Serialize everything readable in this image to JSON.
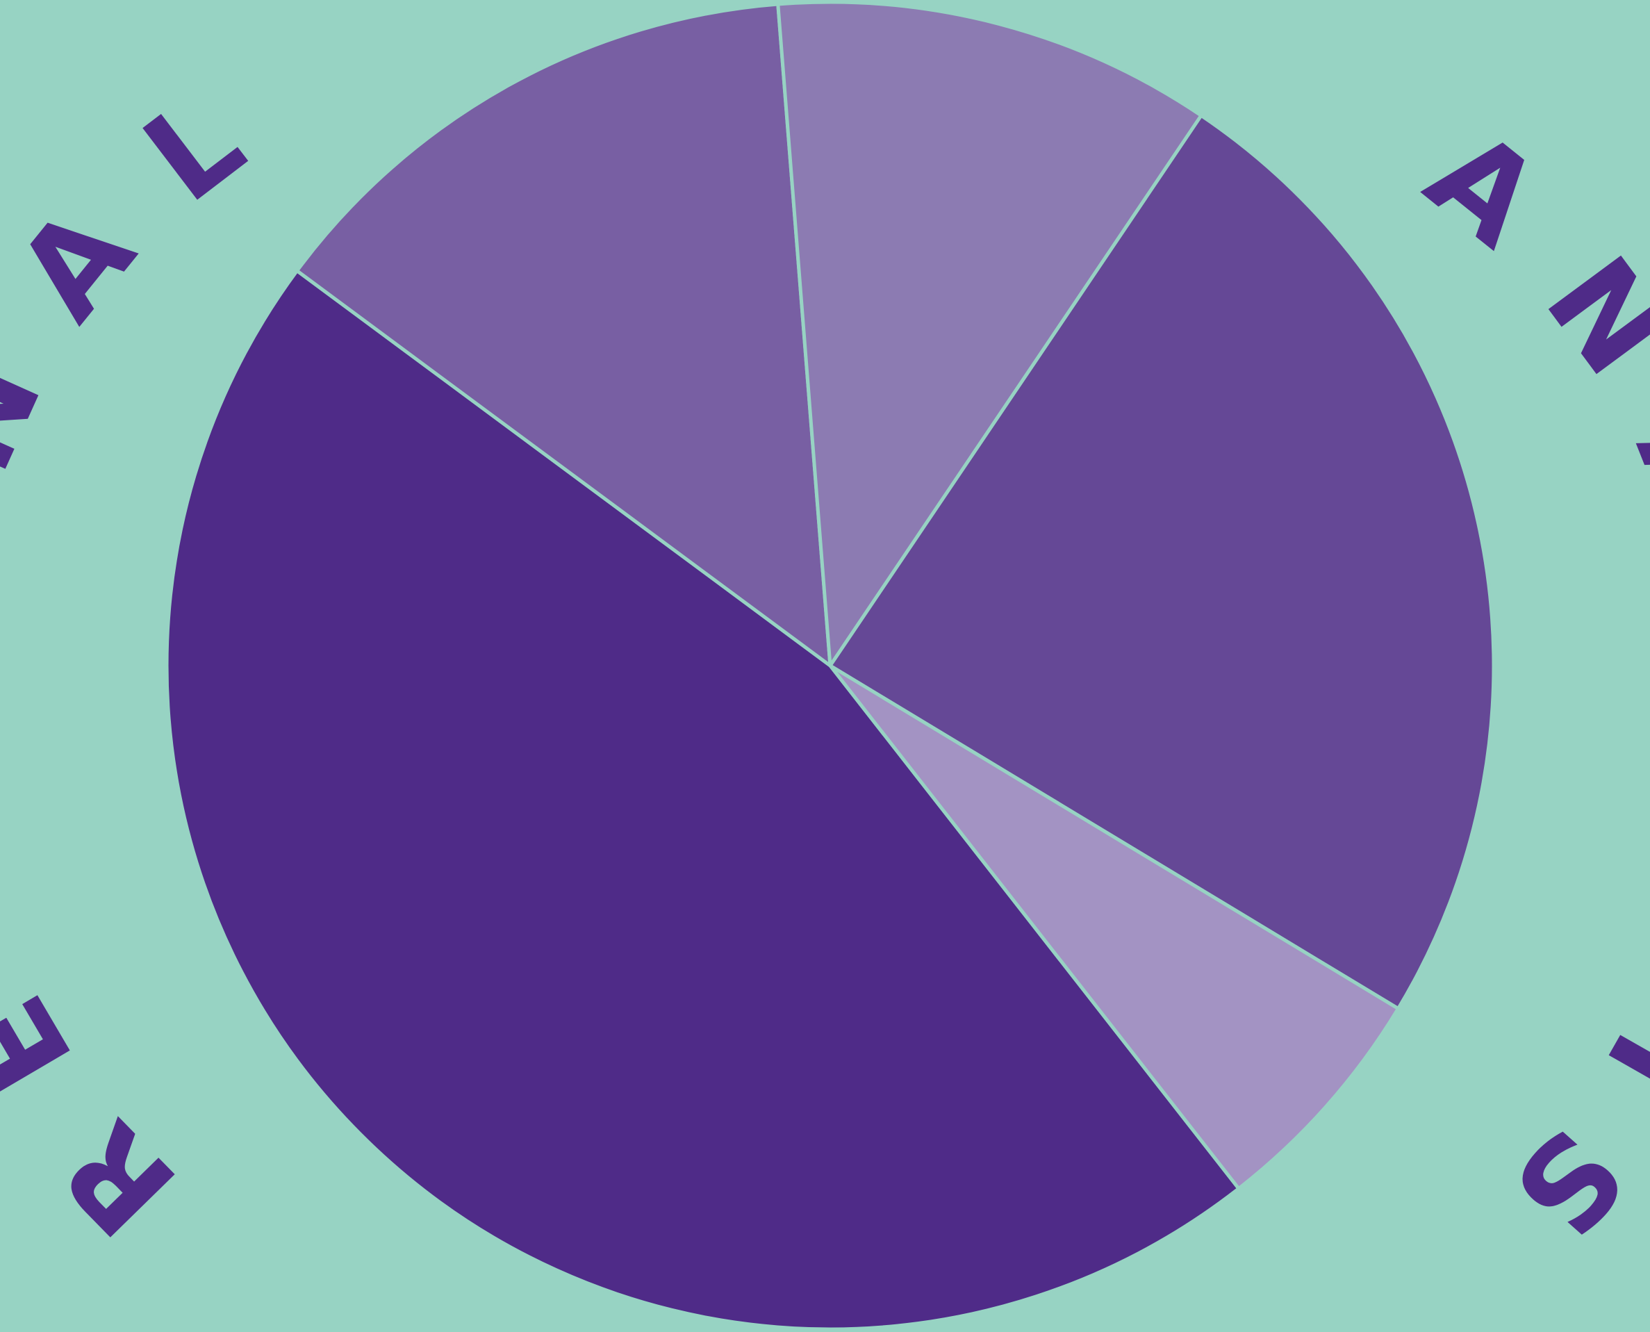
{
  "chart_data": {
    "type": "pie",
    "title_left": "REGIONAL",
    "title_right": "ANALYSIS",
    "legend": "none",
    "slices": [
      {
        "value": 45.7,
        "color": "#4f2b88"
      },
      {
        "value": 13.6,
        "color": "#785fa3"
      },
      {
        "value": 10.7,
        "color": "#8c7bb2"
      },
      {
        "value": 24.2,
        "color": "#654896"
      },
      {
        "value": 5.8,
        "color": "#a393c3"
      }
    ]
  },
  "colors": {
    "background": "#97d3c3",
    "title": "#4f2b88",
    "separator": "#97d3c3"
  }
}
